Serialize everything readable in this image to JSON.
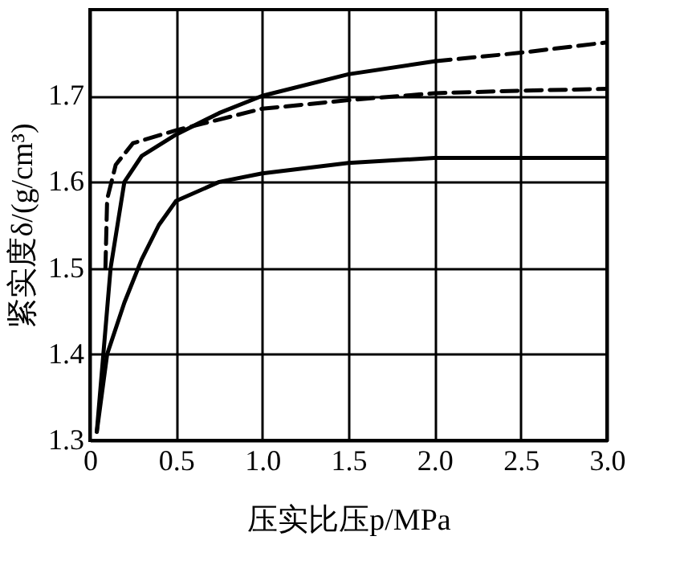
{
  "chart_data": {
    "type": "line",
    "xlabel": "压实比压p/MPa",
    "ylabel": "紧实度δ/(g/cm³)",
    "xlim": [
      0,
      3.0
    ],
    "ylim": [
      1.3,
      1.8
    ],
    "xticks": [
      0,
      {
        "value": 0.5,
        "label": "0.5"
      },
      {
        "value": 1,
        "label": "1.0"
      },
      {
        "value": 1.5,
        "label": "1.5"
      },
      {
        "value": 2,
        "label": "2.0"
      },
      {
        "value": 2.5,
        "label": "2.5"
      },
      {
        "value": 3,
        "label": "3.0"
      }
    ],
    "yticks": [
      1.3,
      1.4,
      1.5,
      1.6,
      1.7
    ],
    "grid": true,
    "marker": "none",
    "series": [
      {
        "color": "#000000",
        "line_style": "solid",
        "x": [
          0.04,
          0.12,
          0.2,
          0.3,
          0.5,
          0.75,
          1.0,
          1.5,
          2.0
        ],
        "values": [
          1.31,
          1.5,
          1.6,
          1.63,
          1.655,
          1.68,
          1.7,
          1.725,
          1.74
        ]
      },
      {
        "color": "#000000",
        "line_style": "dashed",
        "x": [
          2.0,
          2.5,
          3.0
        ],
        "values": [
          1.74,
          1.75,
          1.762
        ]
      },
      {
        "color": "#000000",
        "line_style": "dashed",
        "x": [
          0.09,
          0.1,
          0.15,
          0.25,
          0.5,
          1.0,
          1.5,
          2.0,
          2.5,
          3.0
        ],
        "values": [
          1.5,
          1.58,
          1.62,
          1.645,
          1.66,
          1.685,
          1.695,
          1.703,
          1.706,
          1.708
        ]
      },
      {
        "color": "#000000",
        "line_style": "solid",
        "x": [
          0.04,
          0.1,
          0.2,
          0.3,
          0.4,
          0.5,
          0.75,
          1.0,
          1.5,
          2.0,
          2.5,
          3.0
        ],
        "values": [
          1.31,
          1.4,
          1.46,
          1.51,
          1.55,
          1.578,
          1.6,
          1.61,
          1.622,
          1.628,
          1.628,
          1.628
        ]
      }
    ]
  }
}
